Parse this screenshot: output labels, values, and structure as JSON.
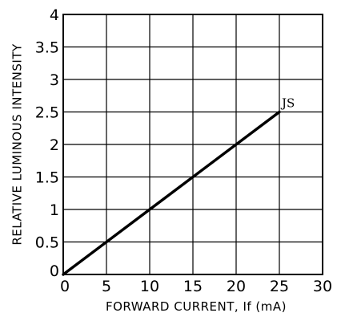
{
  "chart_data": {
    "type": "line",
    "title": "",
    "xlabel": "FORWARD CURRENT, If (mA)",
    "ylabel": "RELATIVE LUMINOUS INTENSITY",
    "xlim": [
      0,
      30
    ],
    "ylim": [
      0,
      4
    ],
    "xticks": [
      0,
      5,
      10,
      15,
      20,
      25,
      30
    ],
    "yticks": [
      0,
      0.5,
      1,
      1.5,
      2,
      2.5,
      3,
      3.5,
      4
    ],
    "xtick_labels": [
      "0",
      "5",
      "10",
      "15",
      "20",
      "25",
      "30"
    ],
    "ytick_labels": [
      "0",
      "0.5",
      "1",
      "1.5",
      "2",
      "2.5",
      "3",
      "3.5",
      "4"
    ],
    "grid": true,
    "series": [
      {
        "x": [
          0,
          25
        ],
        "y": [
          0,
          2.5
        ]
      }
    ],
    "annotation": {
      "text": "JS",
      "x": 25,
      "y": 2.5
    },
    "colors": {
      "line": "#000000",
      "grid": "#000000",
      "background": "#ffffff"
    }
  }
}
